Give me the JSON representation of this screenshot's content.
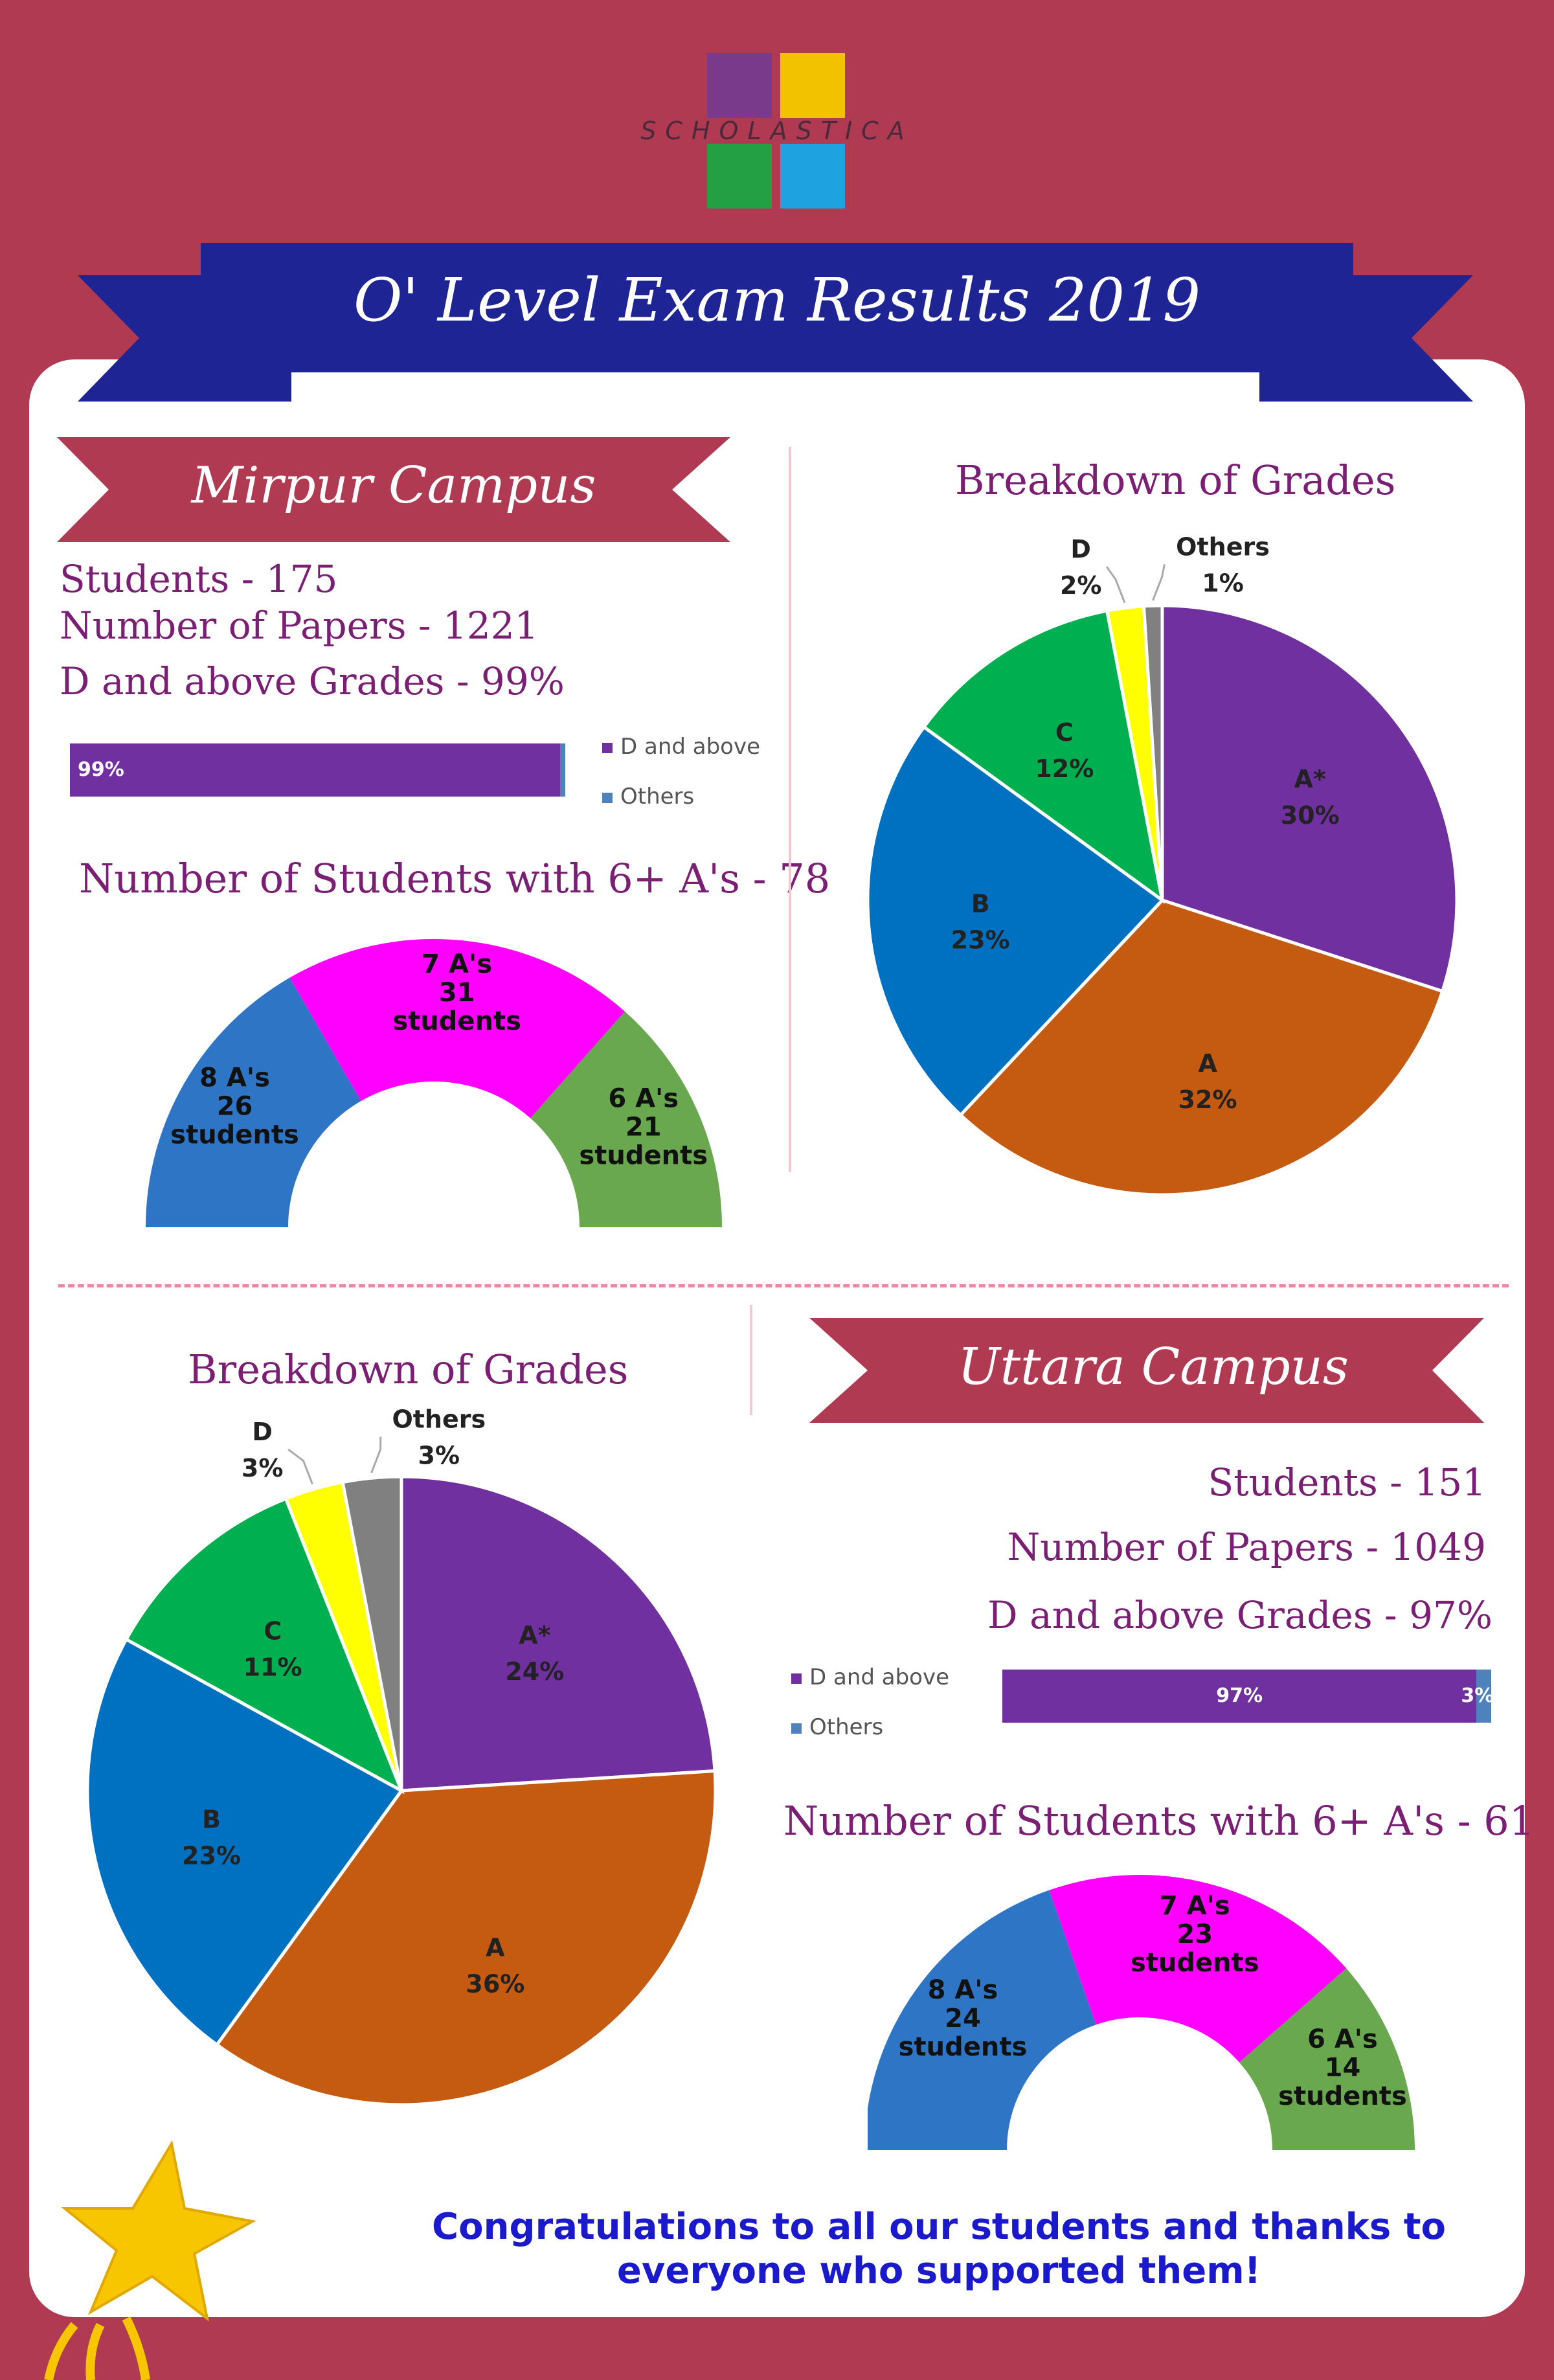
{
  "logo": {
    "text": "SCHOLASTICA"
  },
  "title": "O' Level Exam Results 2019",
  "colors": {
    "background": "#b03a52",
    "banner": "#1f2494",
    "text_purple": "#7a1f74",
    "congrats": "#1a1acc"
  },
  "mirpur": {
    "ribbon": "Mirpur Campus",
    "students": "Students - 175",
    "papers": "Number of Papers - 1221",
    "d_above": "D and above Grades - 99%",
    "six_a_title": "Number of Students with 6+ A's - 78",
    "grades_title": "Breakdown of Grades"
  },
  "uttara": {
    "ribbon": "Uttara Campus",
    "students": "Students - 151",
    "papers": "Number of Papers - 1049",
    "d_above": "D and above Grades - 97%",
    "six_a_title": "Number of Students with 6+ A's - 61",
    "grades_title": "Breakdown of Grades"
  },
  "congrats": "Congratulations to all our students and thanks to everyone who supported them!",
  "chart_data": [
    {
      "id": "mirpur-bar",
      "type": "bar",
      "stacked": true,
      "orientation": "horizontal",
      "series": [
        {
          "name": "D and above",
          "values": [
            99
          ],
          "label": "99%",
          "color": "#7030a0"
        },
        {
          "name": "Others",
          "values": [
            1
          ],
          "label": "1%",
          "color": "#4f81bd"
        }
      ],
      "legend": "right"
    },
    {
      "id": "mirpur-donut",
      "type": "pie",
      "variant": "half-donut",
      "slices": [
        {
          "label": [
            "8 A's",
            "26",
            "students"
          ],
          "value": 26,
          "color": "#2e75c6"
        },
        {
          "label": [
            "7 A's",
            "31",
            "students"
          ],
          "value": 31,
          "color": "#ff00ff"
        },
        {
          "label": [
            "6 A's",
            "21",
            "students"
          ],
          "value": 21,
          "color": "#6aa84f"
        }
      ]
    },
    {
      "id": "mirpur-pie",
      "type": "pie",
      "slices": [
        {
          "label": "A*",
          "value": 30,
          "pct": "30%",
          "color": "#7030a0"
        },
        {
          "label": "A",
          "value": 32,
          "pct": "32%",
          "color": "#c55a11"
        },
        {
          "label": "B",
          "value": 23,
          "pct": "23%",
          "color": "#0070c0"
        },
        {
          "label": "C",
          "value": 12,
          "pct": "12%",
          "color": "#00b050"
        },
        {
          "label": "D",
          "value": 2,
          "pct": "2%",
          "color": "#ffff00"
        },
        {
          "label": "Others",
          "value": 1,
          "pct": "1%",
          "color": "#808080"
        }
      ]
    },
    {
      "id": "uttara-pie",
      "type": "pie",
      "slices": [
        {
          "label": "A*",
          "value": 24,
          "pct": "24%",
          "color": "#7030a0"
        },
        {
          "label": "A",
          "value": 36,
          "pct": "36%",
          "color": "#c55a11"
        },
        {
          "label": "B",
          "value": 23,
          "pct": "23%",
          "color": "#0070c0"
        },
        {
          "label": "C",
          "value": 11,
          "pct": "11%",
          "color": "#00b050"
        },
        {
          "label": "D",
          "value": 3,
          "pct": "3%",
          "color": "#ffff00"
        },
        {
          "label": "Others",
          "value": 3,
          "pct": "3%",
          "color": "#808080"
        }
      ]
    },
    {
      "id": "uttara-bar",
      "type": "bar",
      "stacked": true,
      "orientation": "horizontal",
      "series": [
        {
          "name": "D and above",
          "values": [
            97
          ],
          "label": "97%",
          "color": "#7030a0"
        },
        {
          "name": "Others",
          "values": [
            3
          ],
          "label": "3%",
          "color": "#4f81bd"
        }
      ],
      "legend": "left"
    },
    {
      "id": "uttara-donut",
      "type": "pie",
      "variant": "half-donut",
      "slices": [
        {
          "label": [
            "8 A's",
            "24",
            "students"
          ],
          "value": 24,
          "color": "#2e75c6"
        },
        {
          "label": [
            "7 A's",
            "23",
            "students"
          ],
          "value": 23,
          "color": "#ff00ff"
        },
        {
          "label": [
            "6 A's",
            "14",
            "students"
          ],
          "value": 14,
          "color": "#6aa84f"
        }
      ]
    }
  ]
}
